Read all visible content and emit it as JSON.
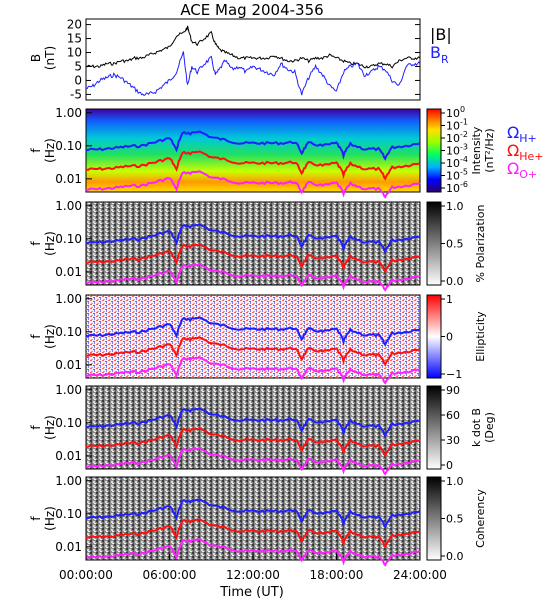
{
  "title": "ACE Mag 2004-356",
  "colors": {
    "black": "#000000",
    "blue": "#1f1fff",
    "red": "#ff1010",
    "magenta": "#ff20ff"
  },
  "x_axis": {
    "label": "Time (UT)",
    "ticks": [
      "00:00:00",
      "06:00:00",
      "12:00:00",
      "18:00:00",
      "24:00:00"
    ]
  },
  "panel_b": {
    "ylabel_top": "B",
    "ylabel_unit": "(nT)",
    "yticks": [
      "20",
      "15",
      "10",
      "5",
      "0",
      "-5"
    ],
    "legend_mag": "|B|",
    "legend_br_main": "B",
    "legend_br_sub": "R"
  },
  "freq_axis": {
    "label_top": "f",
    "label_unit": "(Hz)",
    "ticks": [
      "1.00",
      "0.10",
      "0.01"
    ]
  },
  "gyro_labels": {
    "omega": "Ω",
    "h": "H+",
    "he": "He+",
    "o": "O+"
  },
  "colorbars": {
    "intensity": {
      "ticks": [
        "10",
        "10",
        "10",
        "10",
        "10",
        "10",
        "10"
      ],
      "exponents": [
        "0",
        "-1",
        "-2",
        "-3",
        "-4",
        "-5",
        "-6"
      ],
      "label_line1": "Intensity",
      "label_line2": "(nT²/Hz)"
    },
    "polarization": {
      "ticks": [
        "1.0",
        "0.5",
        "0.0"
      ],
      "label": "% Polarization"
    },
    "ellipticity": {
      "ticks": [
        "1",
        "0",
        "−1"
      ],
      "label": "Ellipticity"
    },
    "kdotb": {
      "ticks": [
        "90",
        "60",
        "30",
        "0"
      ],
      "label_line1": "k dot B",
      "label_line2": "(Deg)"
    },
    "coherency": {
      "ticks": [
        "1.0",
        "0.5",
        "0.0"
      ],
      "label": "Coherency"
    }
  },
  "chart_data": {
    "type": "line",
    "title": "ACE Mag 2004-356",
    "xlabel": "Time (UT)",
    "xlim_hours": [
      0,
      24
    ],
    "panel_b": {
      "ylim": [
        -7,
        22
      ],
      "series": [
        {
          "name": "|B|",
          "color": "#000000",
          "x": [
            0,
            0.5,
            1,
            1.5,
            2,
            2.5,
            3,
            3.5,
            4,
            4.5,
            5,
            5.5,
            6,
            6.5,
            7,
            7.3,
            7.6,
            8,
            8.5,
            9,
            9.3,
            9.6,
            10,
            10.5,
            11,
            11.5,
            12,
            12.5,
            13,
            13.5,
            14,
            14.5,
            15,
            15.5,
            16,
            16.5,
            17,
            17.5,
            18,
            18.5,
            19,
            19.5,
            20,
            20.5,
            21,
            21.5,
            22,
            22.5,
            23,
            23.5,
            24
          ],
          "y": [
            5,
            5,
            5,
            6,
            6,
            7,
            7,
            8,
            8,
            9,
            10,
            11,
            12,
            16,
            17,
            19,
            14,
            13,
            15,
            17,
            13,
            11,
            10,
            9,
            8,
            8,
            8,
            8,
            8,
            9,
            8,
            7,
            7,
            8,
            7,
            8,
            8,
            9,
            8,
            7,
            6,
            6,
            5,
            5,
            6,
            6,
            5,
            7,
            8,
            8,
            8
          ]
        },
        {
          "name": "B_R",
          "color": "#1f1fff",
          "x": [
            0,
            0.5,
            1,
            1.5,
            2,
            2.5,
            3,
            3.5,
            4,
            4.5,
            5,
            5.5,
            6,
            6.5,
            7,
            7.3,
            7.6,
            8,
            8.5,
            9,
            9.3,
            9.6,
            10,
            10.5,
            11,
            11.5,
            12,
            12.5,
            13,
            13.5,
            14,
            14.5,
            15,
            15.5,
            16,
            16.5,
            17,
            17.5,
            18,
            18.5,
            19,
            19.5,
            20,
            20.5,
            21,
            21.5,
            22,
            22.5,
            23,
            23.5,
            24
          ],
          "y": [
            -3,
            -2,
            0,
            1,
            2,
            1,
            -1,
            -3,
            -5,
            -5,
            -4,
            -2,
            0,
            3,
            10,
            -2,
            5,
            3,
            6,
            8,
            2,
            4,
            7,
            4,
            5,
            3,
            5,
            4,
            3,
            2,
            6,
            4,
            3,
            -5,
            1,
            5,
            2,
            -2,
            -4,
            3,
            5,
            6,
            2,
            3,
            5,
            4,
            0,
            -2,
            5,
            6,
            6
          ]
        }
      ]
    },
    "frequency_panels": {
      "ylim_hz": [
        0.004,
        1.3
      ],
      "yscale": "log",
      "panels": [
        "Intensity",
        "% Polarization",
        "Ellipticity",
        "k dot B",
        "Coherency"
      ],
      "series": [
        {
          "name": "ΩH+",
          "color": "#1f1fff",
          "x": [
            0,
            1,
            2,
            3,
            4,
            5,
            6,
            6.5,
            7,
            7.5,
            8,
            9,
            10,
            11,
            12,
            13,
            14,
            15,
            15.5,
            16,
            17,
            18,
            18.5,
            19,
            20,
            21,
            21.5,
            22,
            23,
            24
          ],
          "y": [
            0.075,
            0.078,
            0.085,
            0.095,
            0.1,
            0.13,
            0.17,
            0.07,
            0.26,
            0.22,
            0.28,
            0.18,
            0.15,
            0.12,
            0.12,
            0.12,
            0.12,
            0.13,
            0.06,
            0.12,
            0.1,
            0.12,
            0.05,
            0.11,
            0.08,
            0.08,
            0.04,
            0.09,
            0.1,
            0.12
          ]
        },
        {
          "name": "ΩHe+",
          "color": "#ff1010",
          "x": [
            0,
            1,
            2,
            3,
            4,
            5,
            6,
            6.5,
            7,
            7.5,
            8,
            9,
            10,
            11,
            12,
            13,
            14,
            15,
            15.5,
            16,
            17,
            18,
            18.5,
            19,
            20,
            21,
            21.5,
            22,
            23,
            24
          ],
          "y": [
            0.019,
            0.02,
            0.021,
            0.024,
            0.025,
            0.032,
            0.042,
            0.018,
            0.065,
            0.055,
            0.07,
            0.045,
            0.038,
            0.03,
            0.03,
            0.03,
            0.03,
            0.032,
            0.015,
            0.03,
            0.025,
            0.03,
            0.013,
            0.028,
            0.02,
            0.02,
            0.01,
            0.022,
            0.025,
            0.03
          ]
        },
        {
          "name": "ΩO+",
          "color": "#ff20ff",
          "x": [
            0,
            1,
            2,
            3,
            4,
            5,
            6,
            6.5,
            7,
            7.5,
            8,
            9,
            10,
            11,
            12,
            13,
            14,
            15,
            15.5,
            16,
            17,
            18,
            18.5,
            19,
            20,
            21,
            21.5,
            22,
            23,
            24
          ],
          "y": [
            0.0047,
            0.0049,
            0.0053,
            0.006,
            0.0062,
            0.008,
            0.0105,
            0.0045,
            0.016,
            0.014,
            0.0175,
            0.011,
            0.0095,
            0.0075,
            0.0075,
            0.0075,
            0.0075,
            0.008,
            0.004,
            0.0075,
            0.0062,
            0.0075,
            0.0035,
            0.007,
            0.005,
            0.005,
            0.0028,
            0.0055,
            0.0062,
            0.0075
          ]
        }
      ]
    }
  }
}
